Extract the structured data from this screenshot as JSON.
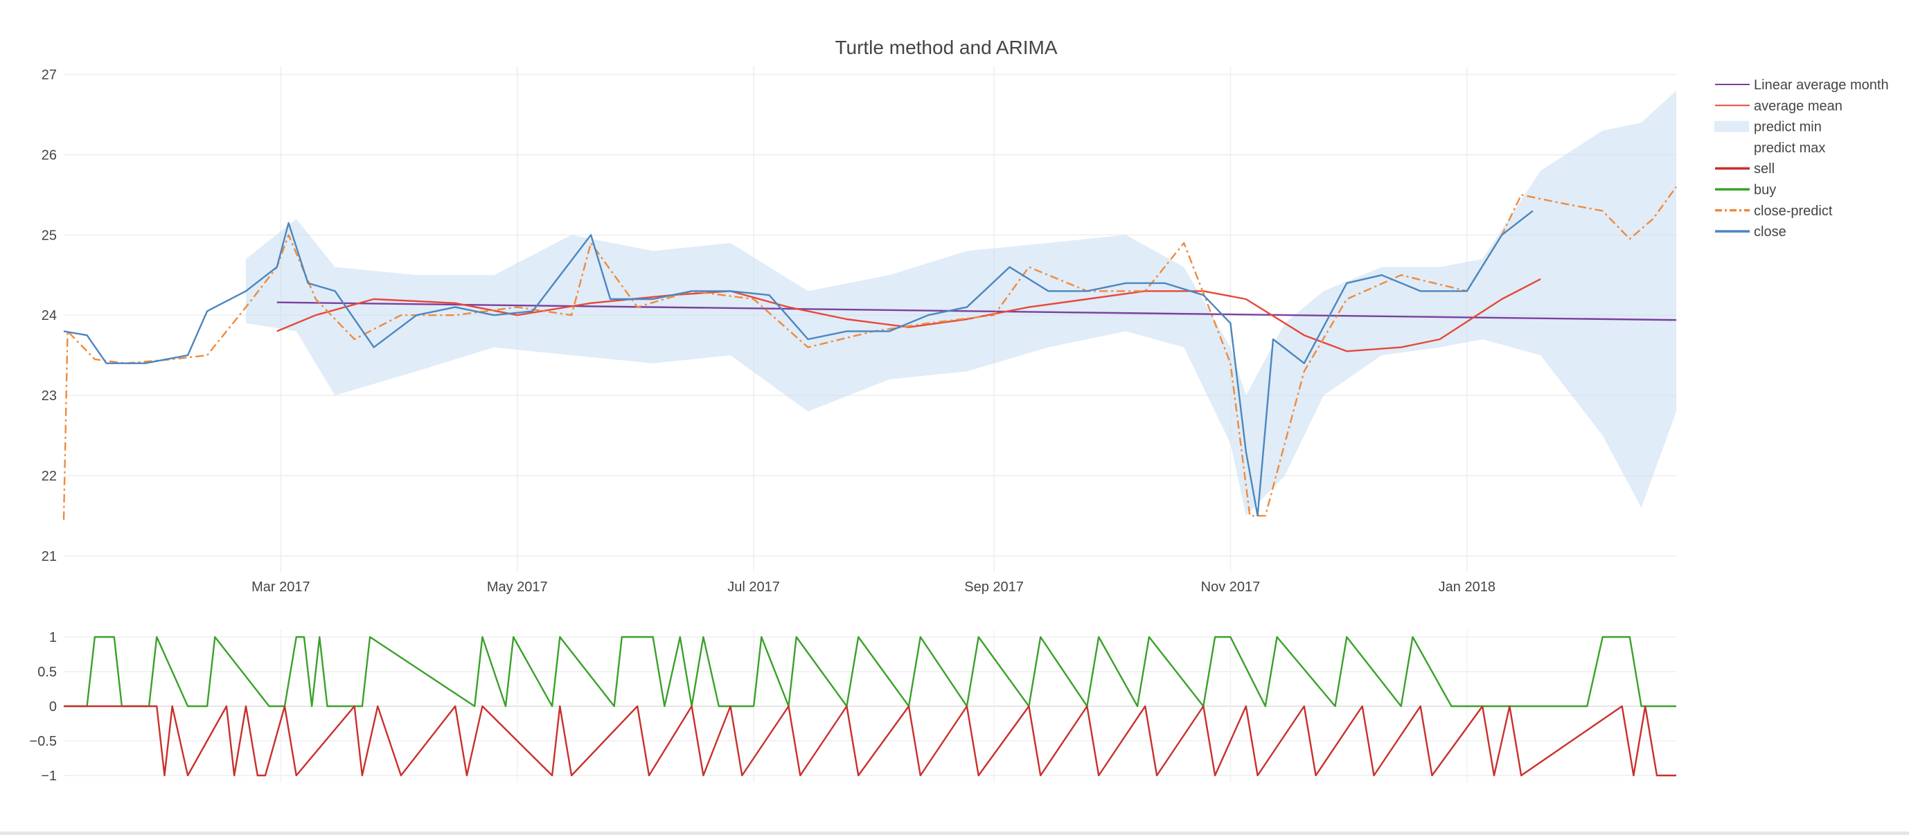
{
  "chart_data": [
    {
      "type": "line",
      "title": "Turtle method and ARIMA",
      "xlabel": "",
      "ylabel": "",
      "x_range": [
        "2017-01-04",
        "2018-02-24"
      ],
      "ylim": [
        20.8,
        27.1
      ],
      "x_ticks": [
        {
          "date": "2017-03-01",
          "label": "Mar 2017"
        },
        {
          "date": "2017-05-01",
          "label": "May 2017"
        },
        {
          "date": "2017-07-01",
          "label": "Jul 2017"
        },
        {
          "date": "2017-09-01",
          "label": "Sep 2017"
        },
        {
          "date": "2017-11-01",
          "label": "Nov 2017"
        },
        {
          "date": "2018-01-01",
          "label": "Jan 2018"
        }
      ],
      "y_ticks": [
        21,
        22,
        23,
        24,
        25,
        26,
        27
      ],
      "grid": true,
      "legend_position": "right",
      "legend": [
        "Linear average month",
        "average mean",
        "predict min",
        "predict max",
        "sell",
        "buy",
        "close-predict",
        "close"
      ],
      "series": [
        {
          "name": "Linear average month",
          "color": "#7b3f9e",
          "style": "solid",
          "x": [
            "2017-02-28",
            "2018-02-24"
          ],
          "y": [
            24.16,
            23.94
          ]
        },
        {
          "name": "average mean",
          "color": "#e8473b",
          "style": "solid",
          "x": [
            "2017-02-28",
            "2017-03-10",
            "2017-03-25",
            "2017-04-15",
            "2017-05-01",
            "2017-05-20",
            "2017-06-10",
            "2017-06-25",
            "2017-07-10",
            "2017-07-25",
            "2017-08-10",
            "2017-08-25",
            "2017-09-10",
            "2017-09-25",
            "2017-10-10",
            "2017-10-25",
            "2017-11-05",
            "2017-11-20",
            "2017-12-01",
            "2017-12-15",
            "2017-12-25",
            "2018-01-10",
            "2018-01-20"
          ],
          "y": [
            23.8,
            24.0,
            24.2,
            24.15,
            24.0,
            24.15,
            24.25,
            24.3,
            24.1,
            23.95,
            23.85,
            23.95,
            24.1,
            24.2,
            24.3,
            24.3,
            24.2,
            23.75,
            23.55,
            23.6,
            23.7,
            24.2,
            24.45
          ]
        },
        {
          "name": "predict min",
          "color": "#c6dcf0",
          "style": "band-lower",
          "x": [
            "2017-02-20",
            "2017-03-05",
            "2017-03-15",
            "2017-04-05",
            "2017-04-25",
            "2017-05-15",
            "2017-06-05",
            "2017-06-25",
            "2017-07-15",
            "2017-08-05",
            "2017-08-25",
            "2017-09-15",
            "2017-10-05",
            "2017-10-20",
            "2017-11-01",
            "2017-11-05",
            "2017-11-15",
            "2017-11-25",
            "2017-12-10",
            "2017-12-25",
            "2018-01-05",
            "2018-01-20",
            "2018-02-05",
            "2018-02-15",
            "2018-02-24"
          ],
          "y": [
            23.9,
            23.8,
            23.0,
            23.3,
            23.6,
            23.5,
            23.4,
            23.5,
            22.8,
            23.2,
            23.3,
            23.6,
            23.8,
            23.6,
            22.4,
            21.5,
            22.0,
            23.0,
            23.5,
            23.6,
            23.7,
            23.5,
            22.5,
            21.6,
            22.8
          ]
        },
        {
          "name": "predict max",
          "color": "#c6dcf0",
          "style": "band-upper",
          "x": [
            "2017-02-20",
            "2017-03-05",
            "2017-03-15",
            "2017-04-05",
            "2017-04-25",
            "2017-05-15",
            "2017-06-05",
            "2017-06-25",
            "2017-07-15",
            "2017-08-05",
            "2017-08-25",
            "2017-09-15",
            "2017-10-05",
            "2017-10-20",
            "2017-11-01",
            "2017-11-05",
            "2017-11-15",
            "2017-11-25",
            "2017-12-10",
            "2017-12-25",
            "2018-01-05",
            "2018-01-20",
            "2018-02-05",
            "2018-02-15",
            "2018-02-24"
          ],
          "y": [
            24.7,
            25.2,
            24.6,
            24.5,
            24.5,
            25.0,
            24.8,
            24.9,
            24.3,
            24.5,
            24.8,
            24.9,
            25.0,
            24.6,
            23.6,
            23.0,
            23.9,
            24.3,
            24.6,
            24.6,
            24.7,
            25.8,
            26.3,
            26.4,
            26.8
          ]
        },
        {
          "name": "close-predict",
          "color": "#ef8a3c",
          "style": "dashdot",
          "x": [
            "2017-01-04",
            "2017-01-05",
            "2017-01-12",
            "2017-01-20",
            "2017-02-01",
            "2017-02-10",
            "2017-02-20",
            "2017-02-28",
            "2017-03-03",
            "2017-03-10",
            "2017-03-20",
            "2017-04-01",
            "2017-04-15",
            "2017-05-01",
            "2017-05-15",
            "2017-05-20",
            "2017-06-01",
            "2017-06-15",
            "2017-07-01",
            "2017-07-15",
            "2017-08-01",
            "2017-08-15",
            "2017-09-01",
            "2017-09-10",
            "2017-09-25",
            "2017-10-10",
            "2017-10-20",
            "2017-11-01",
            "2017-11-06",
            "2017-11-10",
            "2017-11-20",
            "2017-12-01",
            "2017-12-15",
            "2018-01-01",
            "2018-01-10",
            "2018-01-15",
            "2018-01-25",
            "2018-02-05",
            "2018-02-12",
            "2018-02-18",
            "2018-02-24"
          ],
          "y": [
            21.45,
            23.8,
            23.45,
            23.4,
            23.45,
            23.5,
            24.1,
            24.6,
            25.0,
            24.2,
            23.7,
            24.0,
            24.0,
            24.1,
            24.0,
            24.9,
            24.1,
            24.3,
            24.2,
            23.6,
            23.8,
            23.9,
            24.0,
            24.6,
            24.3,
            24.3,
            24.9,
            23.4,
            21.5,
            21.5,
            23.3,
            24.2,
            24.5,
            24.3,
            25.0,
            25.5,
            25.4,
            25.3,
            24.95,
            25.2,
            25.6
          ]
        },
        {
          "name": "close",
          "color": "#4a86c0",
          "style": "solid",
          "x": [
            "2017-01-04",
            "2017-01-10",
            "2017-01-15",
            "2017-01-25",
            "2017-02-05",
            "2017-02-10",
            "2017-02-12",
            "2017-02-20",
            "2017-02-28",
            "2017-03-03",
            "2017-03-08",
            "2017-03-15",
            "2017-03-25",
            "2017-04-05",
            "2017-04-15",
            "2017-04-25",
            "2017-05-05",
            "2017-05-20",
            "2017-05-25",
            "2017-06-05",
            "2017-06-15",
            "2017-06-25",
            "2017-07-05",
            "2017-07-15",
            "2017-07-25",
            "2017-08-05",
            "2017-08-15",
            "2017-08-25",
            "2017-09-05",
            "2017-09-15",
            "2017-09-25",
            "2017-10-05",
            "2017-10-15",
            "2017-10-25",
            "2017-11-01",
            "2017-11-05",
            "2017-11-08",
            "2017-11-12",
            "2017-11-20",
            "2017-12-01",
            "2017-12-10",
            "2017-12-20",
            "2018-01-01",
            "2018-01-10",
            "2018-01-18"
          ],
          "y": [
            23.8,
            23.75,
            23.4,
            23.4,
            23.5,
            24.05,
            24.1,
            24.3,
            24.6,
            25.15,
            24.4,
            24.3,
            23.6,
            24.0,
            24.1,
            24.0,
            24.05,
            25.0,
            24.2,
            24.2,
            24.3,
            24.3,
            24.25,
            23.7,
            23.8,
            23.8,
            24.0,
            24.1,
            24.6,
            24.3,
            24.3,
            24.4,
            24.4,
            24.25,
            23.9,
            22.3,
            21.5,
            23.7,
            23.4,
            24.4,
            24.5,
            24.3,
            24.3,
            25.0,
            25.3
          ]
        }
      ]
    },
    {
      "type": "line",
      "title": "",
      "xlabel": "",
      "ylabel": "",
      "x_range": [
        "2017-01-04",
        "2018-02-24"
      ],
      "ylim": [
        -1.1,
        1.1
      ],
      "y_ticks": [
        {
          "value": 1,
          "label": "1"
        },
        {
          "value": 0.5,
          "label": "0.5"
        },
        {
          "value": 0,
          "label": "0"
        },
        {
          "value": -0.5,
          "label": "−0.5"
        },
        {
          "value": -1,
          "label": "−1"
        }
      ],
      "grid": true,
      "series": [
        {
          "name": "buy",
          "color": "#3aa12a",
          "x": [
            "2017-01-04",
            "2017-01-10",
            "2017-01-12",
            "2017-01-17",
            "2017-01-19",
            "2017-01-26",
            "2017-01-28",
            "2017-02-05",
            "2017-02-10",
            "2017-02-12",
            "2017-02-26",
            "2017-03-02",
            "2017-03-05",
            "2017-03-07",
            "2017-03-09",
            "2017-03-11",
            "2017-03-13",
            "2017-03-22",
            "2017-03-24",
            "2017-04-20",
            "2017-04-22",
            "2017-04-28",
            "2017-04-30",
            "2017-05-10",
            "2017-05-12",
            "2017-05-26",
            "2017-05-28",
            "2017-06-05",
            "2017-06-08",
            "2017-06-12",
            "2017-06-15",
            "2017-06-18",
            "2017-06-22",
            "2017-07-01",
            "2017-07-03",
            "2017-07-10",
            "2017-07-12",
            "2017-07-25",
            "2017-07-28",
            "2017-08-10",
            "2017-08-13",
            "2017-08-25",
            "2017-08-28",
            "2017-09-10",
            "2017-09-13",
            "2017-09-25",
            "2017-09-28",
            "2017-10-08",
            "2017-10-11",
            "2017-10-25",
            "2017-10-28",
            "2017-11-01",
            "2017-11-10",
            "2017-11-13",
            "2017-11-28",
            "2017-12-01",
            "2017-12-15",
            "2017-12-18",
            "2017-12-28",
            "2018-01-01",
            "2018-02-01",
            "2018-02-05",
            "2018-02-12",
            "2018-02-15",
            "2018-02-24"
          ],
          "y": [
            0,
            0,
            1,
            1,
            0,
            0,
            1,
            0,
            0,
            1,
            0,
            0,
            1,
            1,
            0,
            1,
            0,
            0,
            1,
            0,
            1,
            0,
            1,
            0,
            1,
            0,
            1,
            1,
            0,
            1,
            0,
            1,
            0,
            0,
            1,
            0,
            1,
            0,
            1,
            0,
            1,
            0,
            1,
            0,
            1,
            0,
            1,
            0,
            1,
            0,
            1,
            1,
            0,
            1,
            0,
            1,
            0,
            1,
            0,
            0,
            0,
            1,
            1,
            0,
            0
          ]
        },
        {
          "name": "sell",
          "color": "#c9302c",
          "x": [
            "2017-01-04",
            "2017-01-28",
            "2017-01-30",
            "2017-02-01",
            "2017-02-05",
            "2017-02-15",
            "2017-02-17",
            "2017-02-20",
            "2017-02-23",
            "2017-02-25",
            "2017-03-02",
            "2017-03-05",
            "2017-03-20",
            "2017-03-22",
            "2017-03-26",
            "2017-04-01",
            "2017-04-15",
            "2017-04-18",
            "2017-04-22",
            "2017-05-10",
            "2017-05-12",
            "2017-05-15",
            "2017-06-01",
            "2017-06-04",
            "2017-06-15",
            "2017-06-18",
            "2017-06-25",
            "2017-06-28",
            "2017-07-10",
            "2017-07-13",
            "2017-07-25",
            "2017-07-28",
            "2017-08-10",
            "2017-08-13",
            "2017-08-25",
            "2017-08-28",
            "2017-09-10",
            "2017-09-13",
            "2017-09-25",
            "2017-09-28",
            "2017-10-10",
            "2017-10-13",
            "2017-10-25",
            "2017-10-28",
            "2017-11-05",
            "2017-11-08",
            "2017-11-20",
            "2017-11-23",
            "2017-12-05",
            "2017-12-08",
            "2017-12-20",
            "2017-12-23",
            "2018-01-05",
            "2018-01-08",
            "2018-01-12",
            "2018-01-15",
            "2018-02-10",
            "2018-02-13",
            "2018-02-16",
            "2018-02-19",
            "2018-02-24"
          ],
          "y": [
            0,
            0,
            -1,
            0,
            -1,
            0,
            -1,
            0,
            -1,
            -1,
            0,
            -1,
            0,
            -1,
            0,
            -1,
            0,
            -1,
            0,
            -1,
            0,
            -1,
            0,
            -1,
            0,
            -1,
            0,
            -1,
            0,
            -1,
            0,
            -1,
            0,
            -1,
            0,
            -1,
            0,
            -1,
            0,
            -1,
            0,
            -1,
            0,
            -1,
            0,
            -1,
            0,
            -1,
            0,
            -1,
            0,
            -1,
            0,
            -1,
            0,
            -1,
            0,
            -1,
            0,
            -1,
            -1
          ]
        }
      ]
    }
  ]
}
